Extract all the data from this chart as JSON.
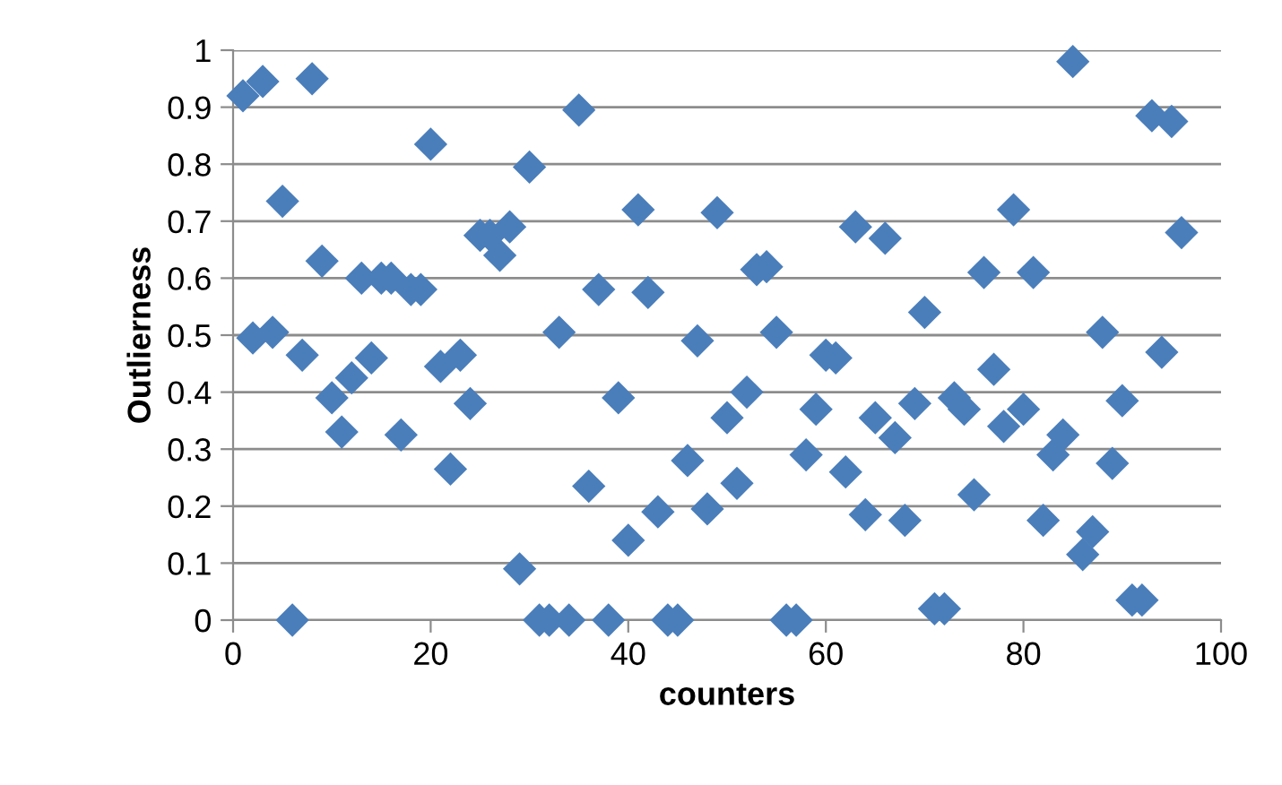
{
  "chart_data": {
    "type": "scatter",
    "xlabel": "counters",
    "ylabel": "Outlierness",
    "marker": "diamond",
    "grid": "y",
    "color": "#4a7ebb",
    "x": [
      1,
      2,
      3,
      4,
      5,
      6,
      7,
      8,
      9,
      10,
      11,
      12,
      13,
      14,
      15,
      16,
      17,
      18,
      19,
      20,
      21,
      22,
      23,
      24,
      25,
      26,
      27,
      28,
      29,
      30,
      31,
      32,
      33,
      34,
      35,
      36,
      37,
      38,
      39,
      40,
      41,
      42,
      43,
      44,
      45,
      46,
      47,
      48,
      49,
      50,
      51,
      52,
      53,
      54,
      55,
      56,
      57,
      58,
      59,
      60,
      61,
      62,
      63,
      64,
      65,
      66,
      67,
      68,
      69,
      70,
      71,
      72,
      73,
      74,
      75,
      76,
      77,
      78,
      79,
      80,
      81,
      82,
      83,
      84,
      85,
      86,
      87,
      88,
      89,
      90,
      91,
      92,
      93,
      94,
      95,
      96
    ],
    "values": [
      0.92,
      0.495,
      0.945,
      0.505,
      0.735,
      0.0,
      0.465,
      0.95,
      0.63,
      0.39,
      0.33,
      0.425,
      0.6,
      0.46,
      0.6,
      0.6,
      0.325,
      0.58,
      0.58,
      0.835,
      0.445,
      0.265,
      0.465,
      0.38,
      0.675,
      0.675,
      0.64,
      0.69,
      0.09,
      0.795,
      0.0,
      0.0,
      0.505,
      0.0,
      0.895,
      0.235,
      0.58,
      0.0,
      0.39,
      0.14,
      0.72,
      0.575,
      0.19,
      0.0,
      0.0,
      0.28,
      0.49,
      0.195,
      0.715,
      0.355,
      0.24,
      0.4,
      0.615,
      0.62,
      0.505,
      0.0,
      0.0,
      0.29,
      0.37,
      0.465,
      0.46,
      0.26,
      0.69,
      0.185,
      0.355,
      0.67,
      0.32,
      0.175,
      0.38,
      0.54,
      0.02,
      0.02,
      0.39,
      0.37,
      0.22,
      0.61,
      0.44,
      0.34,
      0.72,
      0.37,
      0.61,
      0.175,
      0.29,
      0.325,
      0.98,
      0.115,
      0.155,
      0.505,
      0.275,
      0.385,
      0.035,
      0.035,
      0.885,
      0.47,
      0.875,
      0.68
    ],
    "xlim": [
      0,
      100
    ],
    "xticks": [
      0,
      20,
      40,
      60,
      80,
      100
    ],
    "ylim": [
      0,
      1
    ],
    "yticks": [
      0,
      0.1,
      0.2,
      0.3,
      0.4,
      0.5,
      0.6,
      0.7,
      0.8,
      0.9,
      1
    ]
  }
}
